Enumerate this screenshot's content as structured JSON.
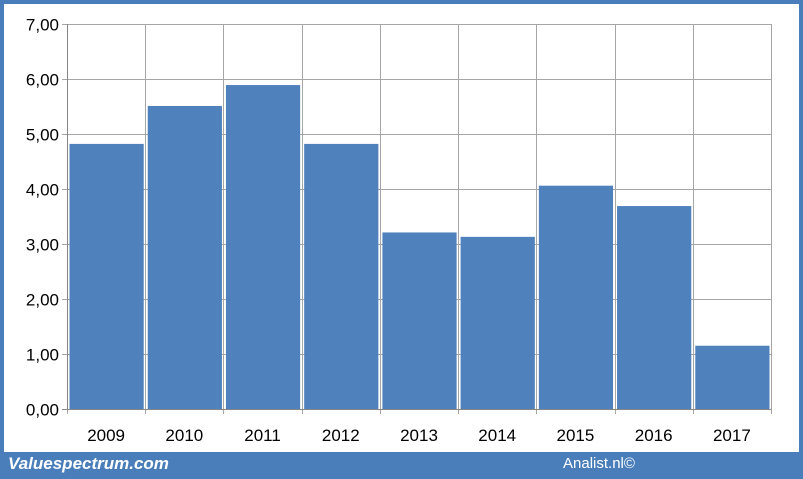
{
  "chart_data": {
    "type": "bar",
    "title": "",
    "xlabel": "",
    "ylabel": "",
    "categories": [
      "2009",
      "2010",
      "2011",
      "2012",
      "2013",
      "2014",
      "2015",
      "2016",
      "2017"
    ],
    "values": [
      4.82,
      5.51,
      5.89,
      4.82,
      3.21,
      3.13,
      4.06,
      3.69,
      1.15
    ],
    "ylim": [
      0,
      7
    ],
    "yticks": [
      "0,00",
      "1,00",
      "2,00",
      "3,00",
      "4,00",
      "5,00",
      "6,00",
      "7,00"
    ],
    "grid": true,
    "bar_color": "#4f81bd"
  },
  "footer": {
    "brand": "Valuespectrum.com",
    "credit": "Analist.nl©"
  },
  "colors": {
    "frame": "#4a7ebb",
    "gridline": "#a6a6a6"
  }
}
